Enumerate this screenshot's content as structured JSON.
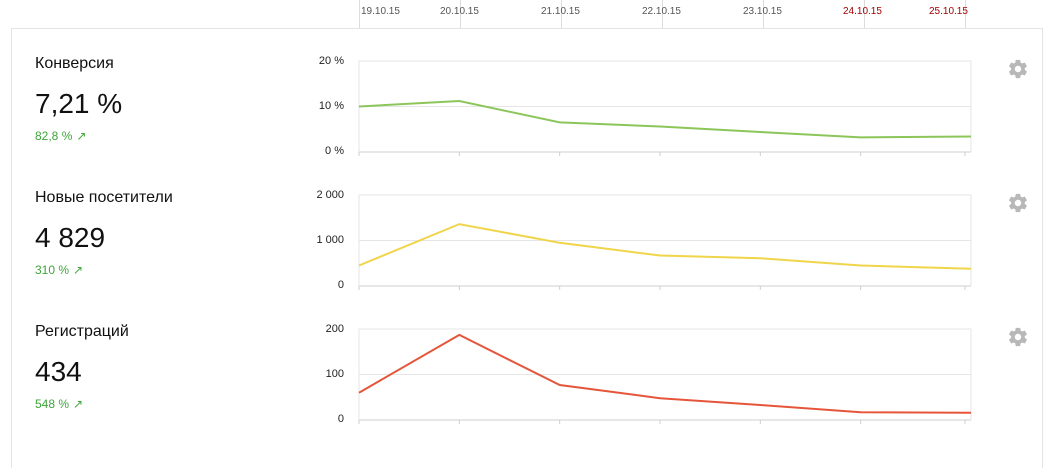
{
  "dates": [
    "19.10.15",
    "20.10.15",
    "21.10.15",
    "22.10.15",
    "23.10.15",
    "24.10.15",
    "25.10.15"
  ],
  "weekend_dates": [
    "24.10.15",
    "25.10.15"
  ],
  "colors": {
    "conversion": "#8cc65a",
    "visitors": "#f0d44a",
    "registrations": "#e5553a",
    "grid": "#e6e6e6",
    "positive_change": "#3ea53a"
  },
  "metrics": [
    {
      "name": "Конверсия",
      "value": "7,21 %",
      "change": "82,8 %",
      "change_icon": "trend-up-arrow",
      "arrow": "↗"
    },
    {
      "name": "Новые посетители",
      "value": "4 829",
      "change": "310 %",
      "change_icon": "trend-up-arrow",
      "arrow": "↗"
    },
    {
      "name": "Регистраций",
      "value": "434",
      "change": "548 %",
      "change_icon": "trend-up-arrow",
      "arrow": "↗"
    }
  ],
  "chart_data": [
    {
      "type": "line",
      "x": [
        "19.10.15",
        "20.10.15",
        "21.10.15",
        "22.10.15",
        "23.10.15",
        "24.10.15",
        "25.10.15"
      ],
      "values": [
        10,
        11.2,
        6.5,
        5.6,
        4.4,
        3.2,
        3.4
      ],
      "ylim": [
        0,
        20
      ],
      "yticks": [
        "20 %",
        "10 %",
        "0 %"
      ],
      "grid": true
    },
    {
      "type": "line",
      "x": [
        "19.10.15",
        "20.10.15",
        "21.10.15",
        "22.10.15",
        "23.10.15",
        "24.10.15",
        "25.10.15"
      ],
      "values": [
        450,
        1360,
        950,
        670,
        610,
        450,
        380
      ],
      "ylim": [
        0,
        2000
      ],
      "yticks": [
        "2 000",
        "1 000",
        "0"
      ],
      "grid": true
    },
    {
      "type": "line",
      "x": [
        "19.10.15",
        "20.10.15",
        "21.10.15",
        "22.10.15",
        "23.10.15",
        "24.10.15",
        "25.10.15"
      ],
      "values": [
        60,
        187,
        77,
        48,
        33,
        17,
        16
      ],
      "ylim": [
        0,
        200
      ],
      "yticks": [
        "200",
        "100",
        "0"
      ],
      "grid": true
    }
  ]
}
